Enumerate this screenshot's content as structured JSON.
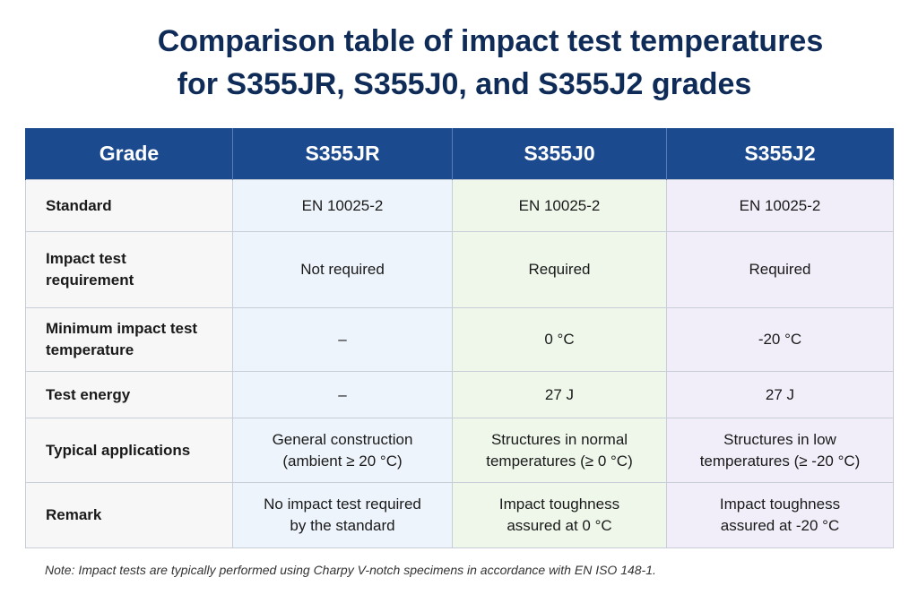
{
  "title": {
    "line1": "Comparison table of impact test temperatures",
    "line2": "for S355JR, S355J0, and S355J2 grades"
  },
  "table": {
    "headers": [
      "Grade",
      "S355JR",
      "S355J0",
      "S355J2"
    ],
    "rows": [
      {
        "label": [
          "Standard"
        ],
        "cells": [
          [
            "EN 10025-2"
          ],
          [
            "EN 10025-2"
          ],
          [
            "EN 10025-2"
          ]
        ]
      },
      {
        "label": [
          "Impact test",
          "requirement"
        ],
        "cells": [
          [
            "Not required"
          ],
          [
            "Required"
          ],
          [
            "Required"
          ]
        ]
      },
      {
        "label": [
          "Minimum impact test",
          "temperature"
        ],
        "cells": [
          [
            "–"
          ],
          [
            "0 °C"
          ],
          [
            "-20 °C"
          ]
        ]
      },
      {
        "label": [
          "Test energy"
        ],
        "cells": [
          [
            "–"
          ],
          [
            "27 J"
          ],
          [
            "27 J"
          ]
        ]
      },
      {
        "label": [
          "Typical applications"
        ],
        "cells": [
          [
            "General construction",
            "(ambient ≥ 20 °C)"
          ],
          [
            "Structures in normal",
            "temperatures (≥ 0 °C)"
          ],
          [
            "Structures in low",
            "temperatures (≥ -20 °C)"
          ]
        ]
      },
      {
        "label": [
          "Remark"
        ],
        "cells": [
          [
            "No impact test required",
            "by the standard"
          ],
          [
            "Impact toughness",
            "assured at 0 °C"
          ],
          [
            "Impact toughness",
            "assured at -20 °C"
          ]
        ]
      }
    ]
  },
  "note": "Note: Impact tests are typically performed using Charpy V-notch specimens in accordance with EN ISO 148-1.",
  "colors": {
    "header_bg": "#1c4a8e",
    "title": "#0f2b57",
    "col_s355jr_bg": "#eef4fc",
    "col_s355j0_bg": "#eef7ea",
    "col_s355j2_bg": "#f1eef9"
  }
}
